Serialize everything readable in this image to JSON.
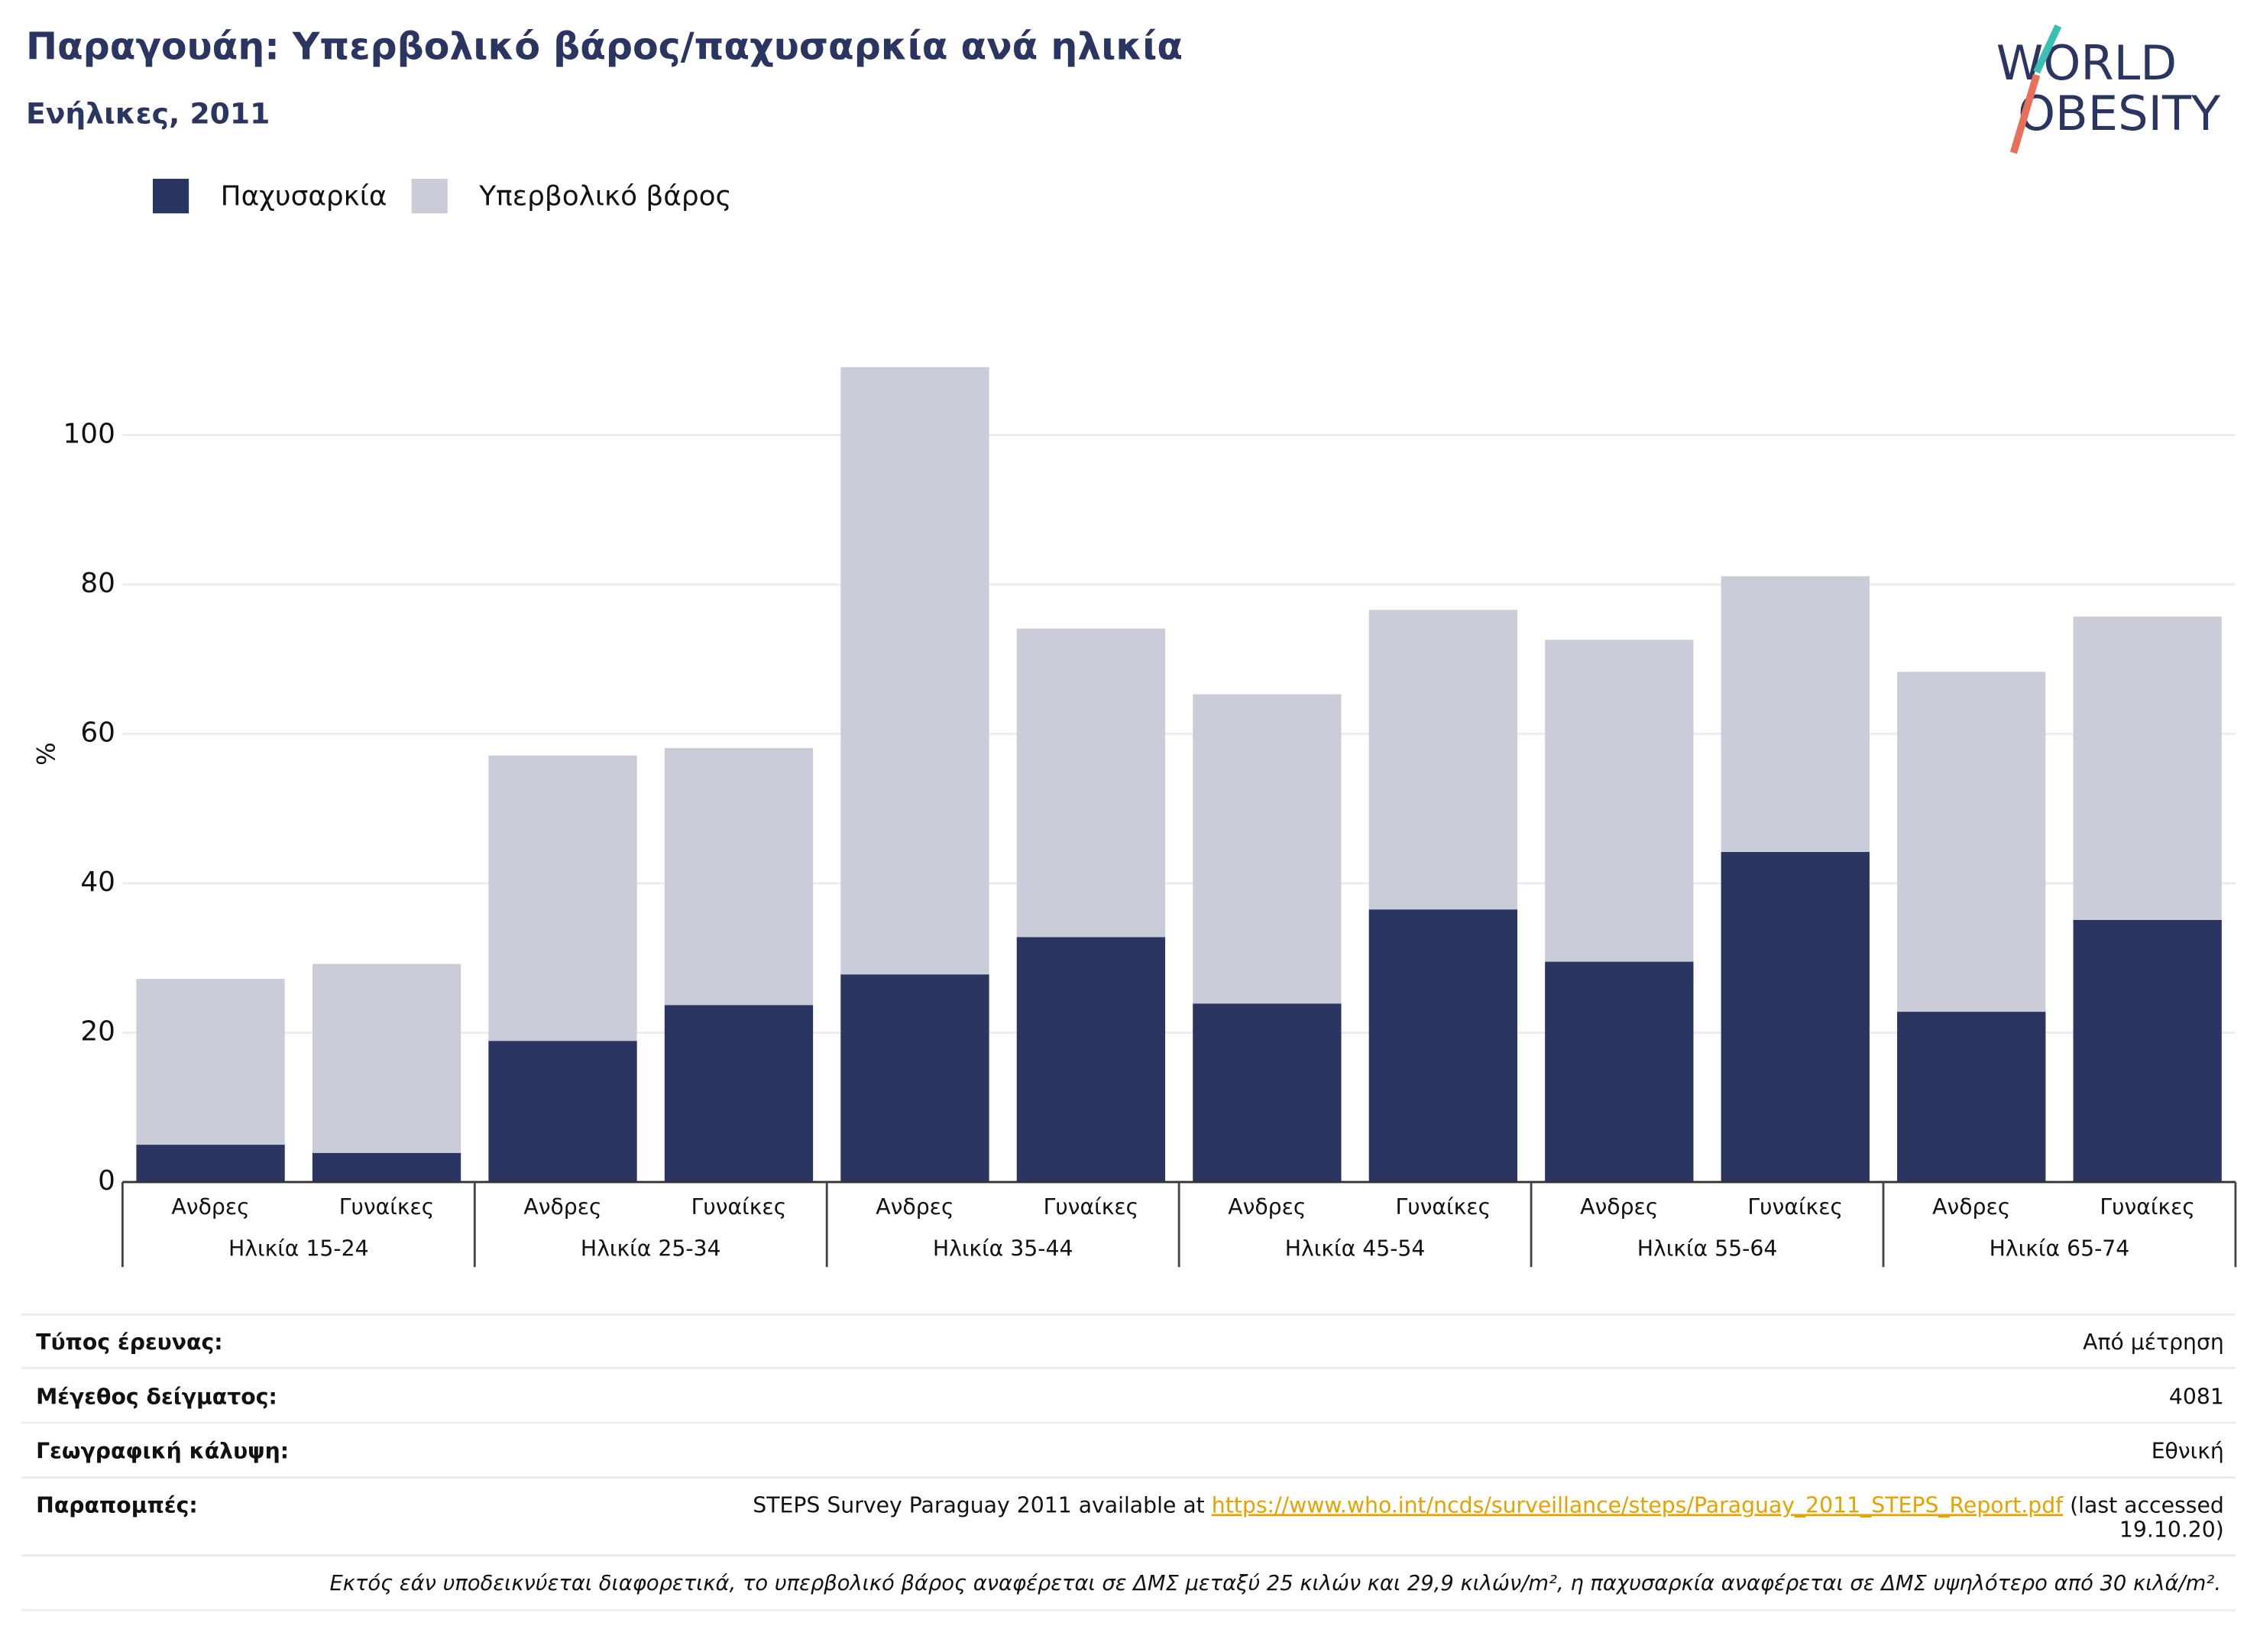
{
  "chart_data": {
    "type": "stacked_bar",
    "title": "Παραγουάη: Υπερβολικό βάρος/παχυσαρκία ανά ηλικία",
    "subtitle": "Ενήλικες, 2011",
    "y_label": "%",
    "logo": [
      "WORLD",
      "OBESITY"
    ],
    "categories": [
      "Ανδρες",
      "Γυναίκες",
      "Ανδρες",
      "Γυναίκες",
      "Ανδρες",
      "Γυναίκες",
      "Ανδρες",
      "Γυναίκες",
      "Ανδρες",
      "Γυναίκες",
      "Ανδρες",
      "Γυναίκες"
    ],
    "groups": [
      "Ηλικία 15-24",
      "Ηλικία 25-34",
      "Ηλικία 35-44",
      "Ηλικία 45-54",
      "Ηλικία 55-64",
      "Ηλικία 65-74"
    ],
    "series": [
      {
        "name": "Παχυσαρκία",
        "color": "#2a3561",
        "values": [
          5.0,
          3.9,
          18.9,
          23.7,
          27.8,
          32.8,
          23.9,
          36.5,
          29.5,
          44.2,
          22.8,
          35.1
        ]
      },
      {
        "name": "Υπερβολικό βάρος",
        "color": "#cacdd9",
        "values": [
          22.2,
          25.3,
          38.2,
          34.4,
          81.3,
          41.3,
          41.4,
          40.1,
          43.1,
          36.9,
          45.5,
          40.6
        ]
      }
    ],
    "ylim": [
      0,
      110
    ],
    "yticks": [
      0,
      20,
      40,
      60,
      80,
      100
    ],
    "grid": true,
    "legend": "top-left"
  },
  "info": {
    "rows": [
      {
        "label": "Τύπος έρευνας:",
        "value": "Από μέτρηση"
      },
      {
        "label": "Μέγεθος δείγματος:",
        "value": "4081"
      },
      {
        "label": "Γεωγραφική κάλυψη:",
        "value": "Εθνική"
      }
    ],
    "reference": {
      "label": "Παραπομπές:",
      "text": "STEPS Survey Paraguay 2011 available at",
      "link": "https://www.who.int/ncds/surveillance/steps/Paraguay_2011_STEPS_Report.pdf",
      "note": [
        "(last accessed",
        "19.10.20)"
      ]
    },
    "footnote": "Εκτός εάν υποδεικνύεται διαφορετικά, το υπερβολικό βάρος αναφέρεται σε ΔΜΣ μεταξύ 25 κιλών και 29,9 κιλών/m², η παχυσαρκία αναφέρεται σε ΔΜΣ υψηλότερο από 30 κιλά/m²."
  }
}
